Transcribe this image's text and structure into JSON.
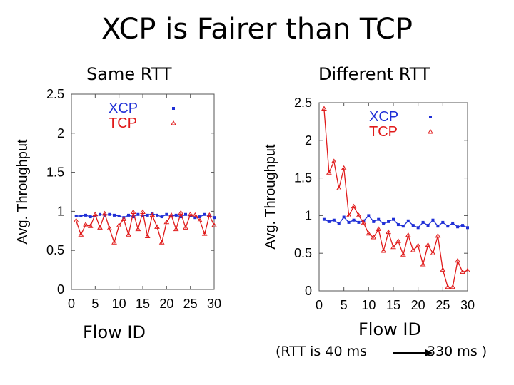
{
  "slide": {
    "title": "XCP is Fairer than TCP",
    "note_left": "(RTT is 40 ms",
    "note_right": "330 ms )"
  },
  "colors": {
    "xcp": "#1f2fd6",
    "tcp": "#e01a1a",
    "frame": "#555555"
  },
  "chart_data": [
    {
      "type": "scatter",
      "subtitle": "Same RTT",
      "xlabel": "Flow ID",
      "ylabel": "Avg. Throughput",
      "xlim": [
        0,
        30
      ],
      "ylim": [
        0,
        2.5
      ],
      "xticks": [
        "0",
        "5",
        "10",
        "15",
        "20",
        "25",
        "30"
      ],
      "yticks": [
        "0",
        "0.5",
        "1",
        "1.5",
        "2",
        "2.5"
      ],
      "grid": false,
      "legend_position": "top-right",
      "series": [
        {
          "name": "XCP",
          "marker": "square",
          "x": [
            1,
            2,
            3,
            4,
            5,
            6,
            7,
            8,
            9,
            10,
            11,
            12,
            13,
            14,
            15,
            16,
            17,
            18,
            19,
            20,
            21,
            22,
            23,
            24,
            25,
            26,
            27,
            28,
            29,
            30
          ],
          "y": [
            0.94,
            0.94,
            0.95,
            0.93,
            0.94,
            0.96,
            0.95,
            0.96,
            0.95,
            0.94,
            0.92,
            0.95,
            0.93,
            0.96,
            0.94,
            0.95,
            0.97,
            0.95,
            0.93,
            0.96,
            0.94,
            0.95,
            0.93,
            0.96,
            0.94,
            0.92,
            0.93,
            0.96,
            0.94,
            0.92
          ]
        },
        {
          "name": "TCP",
          "marker": "triangle",
          "x": [
            1,
            2,
            3,
            4,
            5,
            6,
            7,
            8,
            9,
            10,
            11,
            12,
            13,
            14,
            15,
            16,
            17,
            18,
            19,
            20,
            21,
            22,
            23,
            24,
            25,
            26,
            27,
            28,
            29,
            30
          ],
          "y": [
            0.88,
            0.7,
            0.83,
            0.81,
            0.96,
            0.79,
            0.97,
            0.78,
            0.6,
            0.82,
            0.9,
            0.7,
            0.99,
            0.77,
            0.99,
            0.68,
            0.95,
            0.8,
            0.6,
            0.86,
            0.95,
            0.77,
            0.98,
            0.79,
            0.96,
            0.95,
            0.88,
            0.71,
            0.95,
            0.82
          ]
        }
      ]
    },
    {
      "type": "scatter",
      "subtitle": "Different RTT",
      "xlabel": "Flow ID",
      "ylabel": "Avg. Throughput",
      "xlim": [
        0,
        30
      ],
      "ylim": [
        0,
        2.5
      ],
      "xticks": [
        "0",
        "5",
        "10",
        "15",
        "20",
        "25",
        "30"
      ],
      "yticks": [
        "0",
        "0.5",
        "1",
        "1.5",
        "2",
        "2.5"
      ],
      "grid": false,
      "legend_position": "top-right",
      "series": [
        {
          "name": "XCP",
          "marker": "square",
          "x": [
            1,
            2,
            3,
            4,
            5,
            6,
            7,
            8,
            9,
            10,
            11,
            12,
            13,
            14,
            15,
            16,
            17,
            18,
            19,
            20,
            21,
            22,
            23,
            24,
            25,
            26,
            27,
            28,
            29,
            30
          ],
          "y": [
            0.95,
            0.92,
            0.94,
            0.89,
            0.98,
            0.91,
            0.94,
            0.91,
            0.93,
            1.0,
            0.92,
            0.95,
            0.89,
            0.92,
            0.95,
            0.88,
            0.86,
            0.93,
            0.87,
            0.84,
            0.91,
            0.87,
            0.94,
            0.86,
            0.91,
            0.86,
            0.9,
            0.85,
            0.87,
            0.84
          ]
        },
        {
          "name": "TCP",
          "marker": "triangle",
          "x": [
            1,
            2,
            3,
            4,
            5,
            6,
            7,
            8,
            9,
            10,
            11,
            12,
            13,
            14,
            15,
            16,
            17,
            18,
            19,
            20,
            21,
            22,
            23,
            24,
            25,
            26,
            27,
            28,
            29,
            30
          ],
          "y": [
            2.42,
            1.57,
            1.72,
            1.36,
            1.63,
            1.0,
            1.12,
            1.0,
            0.9,
            0.76,
            0.71,
            0.82,
            0.53,
            0.78,
            0.58,
            0.66,
            0.48,
            0.74,
            0.54,
            0.6,
            0.35,
            0.61,
            0.5,
            0.73,
            0.28,
            0.05,
            0.05,
            0.4,
            0.25,
            0.27
          ]
        }
      ]
    }
  ]
}
